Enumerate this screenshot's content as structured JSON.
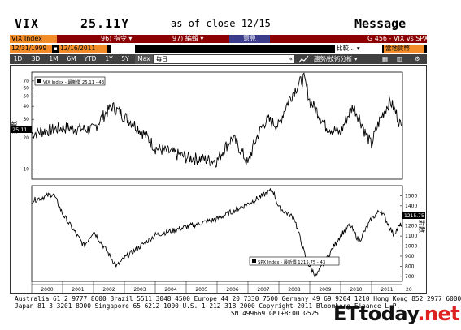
{
  "header": {
    "ticker": "VIX",
    "price": "25.11Y",
    "close_text": "as of close 12/15",
    "message_label": "Message"
  },
  "toolbar1": {
    "security": "VIX Index",
    "menu_96": "96) 指令",
    "menu_97": "97) 編輯",
    "opinion": "意見",
    "function_code": "G 456 - VIX vs SPX"
  },
  "toolbar2": {
    "start_date": "12/31/1999",
    "end_date": "12/16/2011",
    "compare_label": "比較…",
    "local_currency": "當地貨幣"
  },
  "toolbar3": {
    "periods": [
      "1D",
      "3D",
      "1M",
      "6M",
      "YTD",
      "1Y",
      "5Y",
      "Max"
    ],
    "frequency": "每日",
    "analysis_label": "趨勢/技術分析"
  },
  "chart_data": [
    {
      "type": "line",
      "legend": "VIX Index - 最新價 25.11 - 43",
      "y_axis_label": "對數",
      "y_scale": "log",
      "ylim": [
        8,
        85
      ],
      "y_ticks": [
        "70",
        "60",
        "50",
        "40",
        "30",
        "20",
        "10"
      ],
      "last_value_label": "25.11",
      "x": [
        "2000",
        "2001",
        "2002",
        "2003",
        "2004",
        "2005",
        "2006",
        "2007",
        "2008",
        "2009",
        "2010",
        "2011"
      ],
      "anchor_years": [
        2000.0,
        2001.0,
        2002.0,
        2002.6,
        2003.0,
        2004.0,
        2005.0,
        2006.0,
        2006.5,
        2007.0,
        2007.6,
        2008.0,
        2008.8,
        2009.0,
        2009.5,
        2010.0,
        2010.4,
        2010.8,
        2011.0,
        2011.6,
        2011.96
      ],
      "anchor_values": [
        22,
        25,
        24,
        40,
        32,
        16,
        13,
        12,
        20,
        11,
        30,
        26,
        75,
        45,
        26,
        22,
        40,
        22,
        17,
        45,
        25
      ]
    },
    {
      "type": "line",
      "legend": "SPX Index - 最新價 1215.75 - 43",
      "y_axis_label": "對數",
      "ylim": [
        650,
        1600
      ],
      "y_ticks": [
        "1500",
        "1400",
        "1300",
        "1200",
        "1100",
        "1000",
        "900",
        "800",
        "700"
      ],
      "last_value_label": "1215.75",
      "x": [
        "2000",
        "2001",
        "2002",
        "2003",
        "2004",
        "2005",
        "2006",
        "2007",
        "2008",
        "2009",
        "2010",
        "2011"
      ],
      "anchor_years": [
        2000.0,
        2000.7,
        2001.0,
        2001.7,
        2002.0,
        2002.75,
        2003.0,
        2004.0,
        2005.0,
        2006.0,
        2007.0,
        2007.8,
        2008.0,
        2008.5,
        2008.9,
        2009.2,
        2010.0,
        2010.3,
        2010.6,
        2011.0,
        2011.3,
        2011.7,
        2011.96
      ],
      "anchor_values": [
        1450,
        1520,
        1320,
        1000,
        1150,
        800,
        880,
        1110,
        1190,
        1270,
        1420,
        1560,
        1380,
        1280,
        850,
        700,
        1110,
        1210,
        1050,
        1270,
        1360,
        1120,
        1215
      ]
    }
  ],
  "x_axis": {
    "years": [
      "2000",
      "2001",
      "2002",
      "2003",
      "2004",
      "2005",
      "2006",
      "2007",
      "2008",
      "2009",
      "2010",
      "2011"
    ],
    "cut_label": "20"
  },
  "footer": {
    "line1": "Australia 61 2 9777 8600 Brazil 5511 3048 4500 Europe 44 20 7330 7500 Germany 49 69 9204 1210 Hong Kong 852 2977 6000",
    "line2": "Japan 81 3 3201 8900        Singapore 65 6212 1000      U.S. 1 212 318 2000       Copyright 2011 Bloomberg Finance L.P.",
    "line3": "SN 499669           GMT+8:00 G525",
    "watermark_main": "ETtoday",
    "watermark_suffix": ".net"
  },
  "colors": {
    "accent_orange": "#f28c28",
    "bar_red": "#8b0000",
    "button_blue": "#3c3c8c"
  }
}
